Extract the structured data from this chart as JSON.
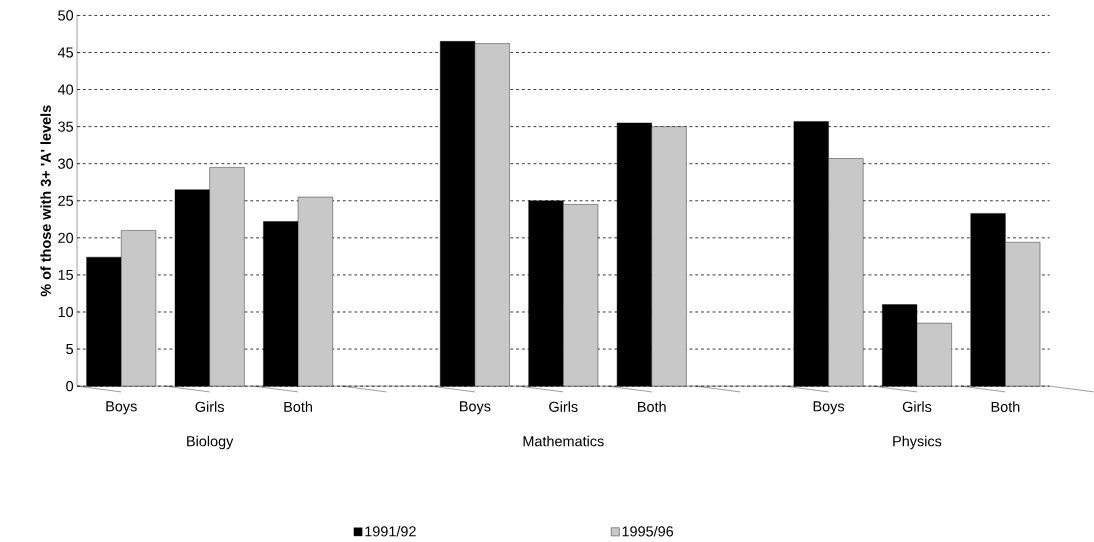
{
  "chart_data": {
    "type": "bar",
    "ylabel": "% of those with 3+ 'A' levels",
    "categories": [
      "Boys",
      "Girls",
      "Both",
      null,
      "Boys",
      "Girls",
      "Both",
      null,
      "Boys",
      "Girls",
      "Both"
    ],
    "series": [
      {
        "name": "1991/92",
        "color": "#000000",
        "values": [
          17.4,
          26.5,
          22.2,
          null,
          46.5,
          25,
          35.5,
          null,
          35.7,
          11,
          23.3
        ]
      },
      {
        "name": "1995/96",
        "color": "#c8c8c8",
        "values": [
          21,
          29.5,
          25.5,
          null,
          46.2,
          24.5,
          35,
          null,
          30.7,
          8.5,
          19.4
        ]
      }
    ],
    "annotations": [
      "Biology",
      "Mathematics",
      "Physics"
    ],
    "ylim": [
      0,
      50
    ],
    "yticks": [
      0,
      5,
      10,
      15,
      20,
      25,
      30,
      35,
      40,
      45,
      50
    ],
    "grid": "y",
    "legend": "bottom"
  }
}
